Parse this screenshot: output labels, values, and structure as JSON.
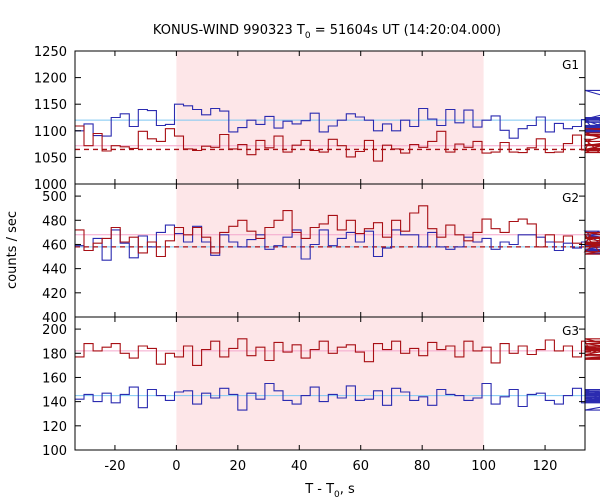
{
  "figure": {
    "title_main": "KONUS-WIND 990323 T",
    "title_sub": "0",
    "title_rest": " = 51604s UT (14:20:04.000)",
    "xlabel_main": "T - T",
    "xlabel_sub": "0",
    "xlabel_rest": ", s",
    "ylabel": "counts / sec"
  },
  "chart_data": {
    "type": "line",
    "step": true,
    "x_range": [
      -33,
      133
    ],
    "x_ticks": [
      -20,
      0,
      20,
      40,
      60,
      80,
      100,
      120
    ],
    "x_tick_labels": [
      "-20",
      "0",
      "20",
      "40",
      "60",
      "80",
      "100",
      "120"
    ],
    "bin_width": 2.944,
    "x_start": -33,
    "shaded_interval": [
      0,
      100
    ],
    "colors": {
      "blue": "#2b2bb0",
      "red": "#a80f14",
      "blue_level": "#7ec8f2",
      "red_level": "#f4a6cc",
      "red_dashed": "#a80f14",
      "shade": "#fde6e8"
    },
    "panels": [
      {
        "label": "G1",
        "ylim": [
          1000,
          1250
        ],
        "y_ticks": [
          1000,
          1050,
          1100,
          1150,
          1200,
          1250
        ],
        "y_tick_labels": [
          "1000",
          "1050",
          "1100",
          "1150",
          "1200",
          "1250"
        ],
        "series": [
          {
            "color": "blue",
            "values": [
              1100,
              1113,
              1091,
              1090,
              1125,
              1132,
              1108,
              1140,
              1138,
              1110,
              1112,
              1150,
              1147,
              1140,
              1130,
              1142,
              1137,
              1098,
              1106,
              1120,
              1112,
              1127,
              1105,
              1118,
              1113,
              1119,
              1133,
              1098,
              1109,
              1120,
              1132,
              1126,
              1120,
              1100,
              1113,
              1100,
              1120,
              1108,
              1142,
              1122,
              1110,
              1140,
              1115,
              1139,
              1107,
              1120,
              1128,
              1101,
              1086,
              1104,
              1110,
              1126,
              1098,
              1114,
              1104,
              1108,
              1121,
              1109,
              1101,
              1120,
              1098,
              1125,
              1106,
              1123,
              1108,
              1100,
              1103,
              1116,
              1122,
              1176,
              1110,
              1117
            ]
          },
          {
            "color": "red",
            "values": [
              1109,
              1072,
              1095,
              1062,
              1072,
              1070,
              1067,
              1099,
              1085,
              1080,
              1104,
              1090,
              1066,
              1063,
              1071,
              1069,
              1093,
              1066,
              1074,
              1055,
              1082,
              1068,
              1090,
              1060,
              1073,
              1082,
              1063,
              1060,
              1084,
              1072,
              1051,
              1061,
              1082,
              1043,
              1073,
              1066,
              1058,
              1074,
              1069,
              1080,
              1099,
              1060,
              1075,
              1069,
              1080,
              1058,
              1060,
              1078,
              1060,
              1059,
              1068,
              1085,
              1059,
              1060,
              1076,
              1092,
              1064,
              1084,
              1059,
              1080,
              1096,
              1072,
              1074,
              1066,
              1072,
              1093,
              1065,
              1104,
              1092,
              1073,
              1060,
              1063
            ]
          }
        ],
        "levels": [
          {
            "color": "blue_level",
            "value": 1120,
            "style": "solid"
          },
          {
            "color": "red_level",
            "value": 1072,
            "style": "solid"
          },
          {
            "color": "red_dashed",
            "value": 1065,
            "style": "dashed"
          }
        ]
      },
      {
        "label": "G2",
        "ylim": [
          400,
          510
        ],
        "y_ticks": [
          400,
          420,
          440,
          460,
          480,
          500
        ],
        "y_tick_labels": [
          "400",
          "420",
          "440",
          "460",
          "480",
          "500"
        ],
        "series": [
          {
            "color": "blue",
            "values": [
              459,
              455,
              465,
              447,
              472,
              461,
              449,
              467,
              458,
              470,
              476,
              469,
              462,
              475,
              462,
              451,
              468,
              462,
              458,
              464,
              468,
              456,
              459,
              466,
              472,
              448,
              460,
              472,
              459,
              465,
              470,
              462,
              471,
              450,
              457,
              472,
              468,
              468,
              458,
              470,
              458,
              456,
              458,
              466,
              462,
              465,
              456,
              462,
              460,
              468,
              468,
              466,
              462,
              455,
              461,
              457,
              462,
              465,
              471,
              455,
              456,
              461,
              458,
              458,
              466,
              468,
              458,
              456,
              452,
              459,
              462,
              454
            ]
          },
          {
            "color": "red",
            "values": [
              472,
              455,
              461,
              465,
              474,
              462,
              466,
              453,
              462,
              450,
              463,
              474,
              468,
              474,
              466,
              453,
              470,
              475,
              480,
              471,
              465,
              474,
              480,
              488,
              470,
              465,
              474,
              477,
              484,
              472,
              480,
              469,
              473,
              478,
              466,
              480,
              471,
              486,
              492,
              473,
              466,
              476,
              468,
              463,
              470,
              481,
              473,
              470,
              479,
              481,
              477,
              458,
              468,
              462,
              467,
              461,
              460,
              468,
              454,
              470,
              470,
              465,
              458,
              466,
              462,
              460,
              458,
              466,
              461,
              452,
              470,
              458
            ]
          }
        ],
        "levels": [
          {
            "color": "blue_level",
            "value": 458,
            "style": "solid"
          },
          {
            "color": "red_level",
            "value": 468,
            "style": "solid"
          },
          {
            "color": "red_dashed",
            "value": 458,
            "style": "dashed"
          }
        ]
      },
      {
        "label": "G3",
        "ylim": [
          100,
          210
        ],
        "y_ticks": [
          100,
          120,
          140,
          160,
          180,
          200
        ],
        "y_tick_labels": [
          "100",
          "120",
          "140",
          "160",
          "180",
          "200"
        ],
        "series": [
          {
            "color": "blue",
            "values": [
              142,
              146,
              140,
              147,
              139,
              146,
              152,
              135,
              150,
              145,
              141,
              148,
              149,
              138,
              147,
              143,
              151,
              146,
              133,
              147,
              142,
              155,
              149,
              141,
              138,
              145,
              152,
              140,
              146,
              143,
              153,
              141,
              142,
              149,
              137,
              151,
              148,
              141,
              144,
              137,
              150,
              146,
              145,
              141,
              143,
              155,
              138,
              144,
              150,
              136,
              146,
              147,
              141,
              138,
              145,
              151,
              139,
              143,
              140,
              150,
              143,
              144,
              141,
              148,
              133,
              145,
              149,
              142,
              140,
              147,
              139,
              146
            ]
          },
          {
            "color": "red",
            "values": [
              177,
              188,
              182,
              185,
              188,
              180,
              176,
              186,
              184,
              171,
              180,
              177,
              186,
              170,
              183,
              190,
              177,
              184,
              192,
              178,
              185,
              174,
              189,
              181,
              187,
              176,
              183,
              190,
              180,
              185,
              187,
              181,
              173,
              188,
              183,
              190,
              180,
              184,
              178,
              189,
              183,
              186,
              177,
              190,
              182,
              185,
              172,
              188,
              180,
              186,
              179,
              183,
              191,
              182,
              186,
              177,
              190,
              181,
              184,
              186,
              178,
              192,
              182,
              185,
              179,
              190,
              184,
              176,
              183,
              188,
              175,
              182
            ]
          }
        ],
        "levels": [
          {
            "color": "blue_level",
            "value": 145,
            "style": "solid"
          },
          {
            "color": "red_level",
            "value": 182,
            "style": "solid"
          }
        ]
      }
    ]
  }
}
